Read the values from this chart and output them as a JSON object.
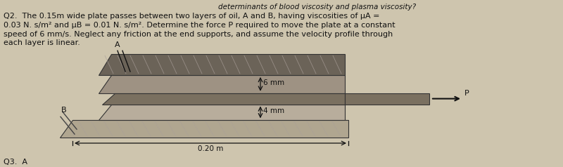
{
  "bg_color": "#cec5ae",
  "text_color": "#111111",
  "header": "determinants of blood viscosity and plasma viscosity?",
  "line1": "Q2.  The 0.15m wide plate passes between two layers of oil, A and B, having viscosities of μA =",
  "line2": "0.03 N. s/m² and μB = 0.01 N. s/m². Determine the force P required to move the plate at a constant",
  "line3": "speed of 6 mm/s. Neglect any friction at the end supports, and assume the velocity profile through",
  "line4": "each layer is linear.",
  "footer": "Q3.  A",
  "label_A": "A",
  "label_B": "B",
  "label_6mm": "6 mm",
  "label_4mm": "4 mm",
  "label_0_20m": "0.20 m",
  "label_P": "P",
  "color_top_slab": "#6b6358",
  "color_oil_A": "#9e9283",
  "color_plate": "#7a7060",
  "color_oil_B": "#b8ad9c",
  "color_bottom_slab": "#9e9283",
  "color_outer_slab": "#b0a690",
  "fontsize_body": 8.0,
  "fontsize_header": 7.5,
  "fontsize_label": 7.5,
  "fontsize_footer": 8.0
}
